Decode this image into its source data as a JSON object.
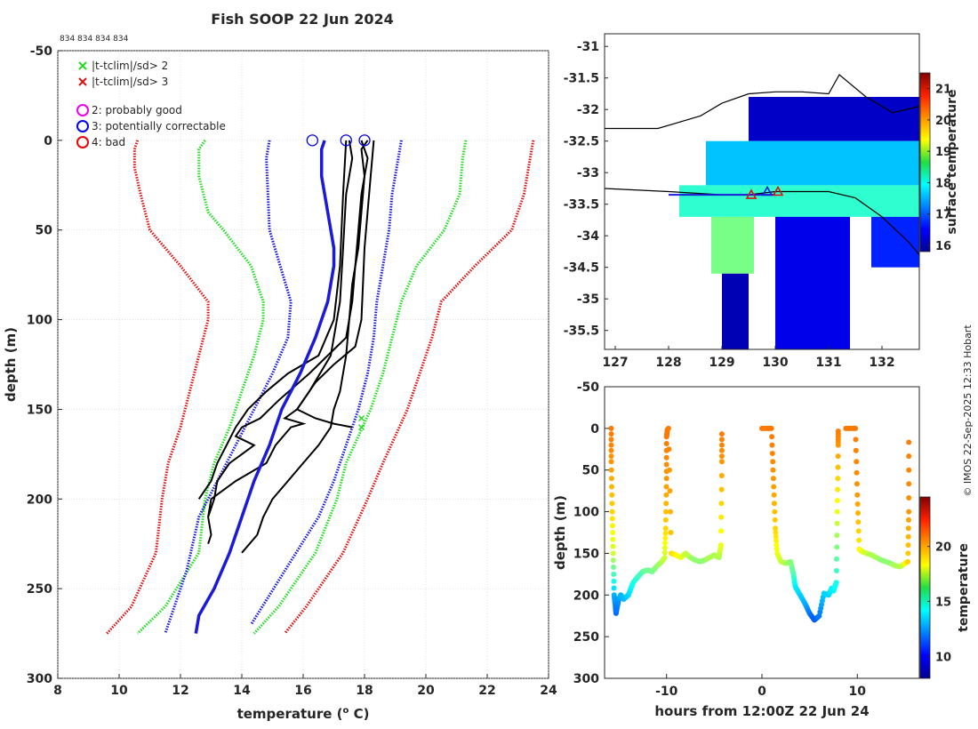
{
  "title": "Fish SOOP 22 Jun 2024",
  "header_ids": "834 834 834 834",
  "credit": "© IMOS 22-Sep-2025 12:33 Hobart",
  "colors": {
    "axis": "#262626",
    "grid": "#d0d0d0",
    "qc2": "#ee00ee",
    "qc3": "#0000ee",
    "qc4": "#ee0000",
    "clim2": "#22dd22",
    "clim3": "#dd1111",
    "profile": "#000000",
    "mean": "#1a1adc",
    "coast": "#000000"
  },
  "chart_data": [
    {
      "type": "line",
      "id": "profiles",
      "title": "Fish SOOP 22 Jun 2024",
      "xlabel": "temperature (",
      "xlabel_sup": "o",
      "xlabel_tail": " C)",
      "ylabel": "depth (m)",
      "xlim": [
        8,
        24
      ],
      "ylim": [
        -50,
        300
      ],
      "y_reversed": true,
      "xticks": [
        8,
        10,
        12,
        14,
        16,
        18,
        20,
        22,
        24
      ],
      "yticks": [
        -50,
        0,
        50,
        100,
        150,
        200,
        250,
        300
      ],
      "grid": true,
      "legend": {
        "position": "top-left",
        "entries": [
          {
            "marker": "x",
            "color": "#22dd22",
            "label": "|t-tclim|/sd> 2"
          },
          {
            "marker": "x",
            "color": "#dd1111",
            "label": "|t-tclim|/sd> 3"
          },
          {
            "marker": "o",
            "color": "#ee00ee",
            "label": "2: probably good"
          },
          {
            "marker": "o",
            "color": "#0000ee",
            "label": "3: potentially correctable"
          },
          {
            "marker": "o",
            "color": "#ee0000",
            "label": "4: bad"
          }
        ]
      },
      "clim_lines": [
        {
          "name": "clim -3sd (left)",
          "color": "#dd1111",
          "depth": [
            0,
            5,
            15,
            30,
            50,
            70,
            90,
            100,
            120,
            140,
            160,
            180,
            200,
            230,
            260,
            275
          ],
          "temp": [
            10.6,
            10.5,
            10.5,
            10.7,
            11.0,
            12.0,
            12.9,
            12.9,
            12.6,
            12.3,
            12.0,
            11.6,
            11.4,
            11.2,
            10.4,
            9.6
          ]
        },
        {
          "name": "clim -2sd (left)",
          "color": "#22dd22",
          "depth": [
            0,
            5,
            20,
            40,
            50,
            70,
            90,
            100,
            120,
            140,
            160,
            180,
            200,
            230,
            260,
            275
          ],
          "temp": [
            12.8,
            12.6,
            12.6,
            12.9,
            13.4,
            14.3,
            14.7,
            14.7,
            14.4,
            14.0,
            13.6,
            13.1,
            12.8,
            12.6,
            11.5,
            10.6
          ]
        },
        {
          "name": "clim +2sd (right)",
          "color": "#22dd22",
          "depth": [
            0,
            10,
            30,
            50,
            70,
            90,
            110,
            130,
            150,
            165,
            180,
            200,
            230,
            260,
            275
          ],
          "temp": [
            21.3,
            21.2,
            21.1,
            20.6,
            19.7,
            19.2,
            18.9,
            18.6,
            18.2,
            17.8,
            17.4,
            17.1,
            16.4,
            15.2,
            14.4
          ]
        },
        {
          "name": "clim +3sd (right)",
          "color": "#dd1111",
          "depth": [
            0,
            10,
            30,
            50,
            70,
            90,
            110,
            130,
            150,
            165,
            180,
            200,
            230,
            260,
            275
          ],
          "temp": [
            23.5,
            23.4,
            23.2,
            22.8,
            21.6,
            20.5,
            20.2,
            19.8,
            19.4,
            19.0,
            18.6,
            18.1,
            17.3,
            16.1,
            15.4
          ]
        }
      ],
      "std_lines": [
        {
          "name": "std -1",
          "color": "#1a1adc",
          "depth": [
            0,
            10,
            50,
            90,
            110,
            130,
            150,
            180,
            210,
            240,
            275
          ],
          "temp": [
            14.9,
            14.8,
            14.9,
            15.6,
            15.5,
            15.0,
            14.4,
            13.5,
            12.6,
            12.2,
            11.5
          ]
        },
        {
          "name": "std +1",
          "color": "#1a1adc",
          "depth": [
            0,
            10,
            30,
            50,
            70,
            90,
            110,
            130,
            150,
            170,
            190,
            210,
            240,
            270
          ],
          "temp": [
            19.2,
            19.1,
            18.9,
            18.8,
            18.6,
            18.4,
            18.3,
            18.1,
            17.8,
            17.4,
            17.0,
            16.5,
            15.4,
            14.3
          ]
        }
      ],
      "profiles": [
        {
          "depth": [
            0,
            5,
            20,
            40,
            60,
            80,
            100,
            120,
            140,
            150,
            160,
            170,
            180,
            190,
            200,
            210,
            220,
            230
          ],
          "temp": [
            18.1,
            17.9,
            18.0,
            17.9,
            17.8,
            17.6,
            17.5,
            17.4,
            17.2,
            17.0,
            16.9,
            16.5,
            16.0,
            15.5,
            15.0,
            14.7,
            14.5,
            14.0
          ]
        },
        {
          "depth": [
            0,
            10,
            30,
            50,
            70,
            90,
            110,
            130,
            145,
            155,
            160,
            165,
            170,
            175,
            180,
            190,
            200,
            210,
            220,
            225
          ],
          "temp": [
            17.9,
            18.1,
            17.9,
            17.8,
            17.7,
            17.6,
            17.4,
            16.2,
            15.2,
            14.6,
            14.0,
            13.8,
            14.4,
            14.0,
            13.6,
            13.2,
            13.1,
            12.9,
            13.0,
            12.9
          ]
        },
        {
          "depth": [
            0,
            10,
            30,
            60,
            90,
            120,
            140,
            150,
            155,
            158,
            160,
            170,
            180,
            185,
            190,
            195,
            200,
            210
          ],
          "temp": [
            17.5,
            17.6,
            17.4,
            17.3,
            17.2,
            16.9,
            16.2,
            15.8,
            15.4,
            16.0,
            15.6,
            15.1,
            14.8,
            14.3,
            13.8,
            13.4,
            13.0,
            12.9
          ]
        },
        {
          "depth": [
            0,
            30,
            70,
            100,
            120,
            130,
            140,
            150,
            160,
            170,
            180,
            190,
            195,
            200
          ],
          "temp": [
            17.4,
            17.3,
            17.2,
            17.0,
            16.5,
            15.5,
            14.8,
            14.2,
            13.8,
            13.5,
            13.2,
            13.0,
            12.8,
            12.6
          ]
        },
        {
          "depth": [
            0,
            20,
            60,
            100,
            115,
            125,
            135,
            145,
            150,
            155,
            158,
            160
          ],
          "temp": [
            18.3,
            18.2,
            18.0,
            17.9,
            17.7,
            17.0,
            16.4,
            16.0,
            15.8,
            16.4,
            17.0,
            17.6
          ]
        }
      ],
      "mean_profile": {
        "color": "#1a1adc",
        "depth": [
          0,
          5,
          20,
          40,
          60,
          70,
          90,
          110,
          130,
          150,
          170,
          190,
          210,
          230,
          250,
          265,
          275
        ],
        "temp": [
          16.7,
          16.6,
          16.6,
          16.8,
          17.0,
          17.0,
          16.8,
          16.4,
          15.9,
          15.3,
          14.9,
          14.4,
          14.0,
          13.6,
          13.1,
          12.6,
          12.5
        ]
      },
      "qc_flags": [
        {
          "temp": 16.3,
          "depth": 0,
          "flag": "3: potentially correctable"
        },
        {
          "temp": 17.4,
          "depth": 0,
          "flag": "3: potentially correctable"
        },
        {
          "temp": 18.0,
          "depth": 0,
          "flag": "3: potentially correctable"
        }
      ],
      "outlier_marks": [
        {
          "temp": 17.9,
          "depth": 155,
          "flag": "|t-tclim|/sd> 2"
        },
        {
          "temp": 17.9,
          "depth": 160,
          "flag": "|t-tclim|/sd> 2"
        }
      ]
    },
    {
      "type": "heatmap",
      "id": "sst-map",
      "xlim": [
        126.8,
        132.7
      ],
      "ylim": [
        -35.8,
        -30.8
      ],
      "xticks": [
        127,
        128,
        129,
        130,
        131,
        132
      ],
      "yticks": [
        -31,
        -31.5,
        -32,
        -32.5,
        -33,
        -33.5,
        -34,
        -34.5,
        -35,
        -35.5
      ],
      "colorbar": {
        "label": "surface temperature",
        "range": [
          15.8,
          21.5
        ],
        "ticks": [
          16,
          17,
          18,
          19,
          20,
          21
        ]
      },
      "sst_blocks": [
        {
          "lon": [
            129.5,
            132.7
          ],
          "lat": [
            -32.5,
            -31.8
          ],
          "temp": 16.2
        },
        {
          "lon": [
            128.7,
            132.7
          ],
          "lat": [
            -33.2,
            -32.5
          ],
          "temp": 17.6
        },
        {
          "lon": [
            128.2,
            132.7
          ],
          "lat": [
            -33.7,
            -33.2
          ],
          "temp": 18.2
        },
        {
          "lon": [
            128.8,
            129.6
          ],
          "lat": [
            -34.6,
            -33.7
          ],
          "temp": 18.6
        },
        {
          "lon": [
            130.0,
            131.4
          ],
          "lat": [
            -35.8,
            -33.7
          ],
          "temp": 16.4
        },
        {
          "lon": [
            129.0,
            129.5
          ],
          "lat": [
            -35.8,
            -34.6
          ],
          "temp": 16.1
        },
        {
          "lon": [
            131.8,
            132.7
          ],
          "lat": [
            -34.5,
            -33.7
          ],
          "temp": 16.7
        }
      ],
      "coastline": {
        "lon": [
          126.8,
          127.8,
          128.6,
          129.0,
          129.5,
          130.0,
          130.5,
          131.0,
          131.2,
          131.7,
          132.2,
          132.7
        ],
        "lat": [
          -32.3,
          -32.3,
          -32.1,
          -31.9,
          -31.75,
          -31.72,
          -31.72,
          -31.75,
          -31.45,
          -31.8,
          -32.05,
          -31.95
        ]
      },
      "front_line": {
        "lon": [
          126.8,
          128.0,
          129.0,
          129.5,
          130.0,
          130.5,
          131.0,
          131.5,
          132.0,
          132.5,
          132.7
        ],
        "lat": [
          -33.25,
          -33.3,
          -33.35,
          -33.35,
          -33.3,
          -33.3,
          -33.3,
          -33.4,
          -33.7,
          -34.1,
          -34.3
        ]
      },
      "ship_track": {
        "lon": [
          128.0,
          130.0
        ],
        "lat": [
          -33.35,
          -33.35
        ]
      },
      "stations": [
        {
          "lon": 129.55,
          "lat": -33.35,
          "color": "#dd1111"
        },
        {
          "lon": 129.85,
          "lat": -33.3,
          "color": "#1a1adc"
        },
        {
          "lon": 130.05,
          "lat": -33.3,
          "color": "#dd1111"
        }
      ]
    },
    {
      "type": "scatter",
      "id": "time-depth",
      "xlabel": "hours from 12:00Z 22 Jun 24",
      "ylabel": "depth (m)",
      "xlim": [
        -16.5,
        16.5
      ],
      "ylim": [
        -50,
        300
      ],
      "y_reversed": true,
      "xticks": [
        -10,
        0,
        10
      ],
      "yticks": [
        -50,
        0,
        50,
        100,
        150,
        200,
        250,
        300
      ],
      "colorbar": {
        "label": "temperature",
        "range": [
          8,
          24.5
        ],
        "ticks": [
          10,
          15,
          20
        ]
      },
      "casts": [
        {
          "time": [
            -15.8,
            -15.8,
            -15.7,
            -15.6,
            -15.5,
            -15.4,
            -15.3,
            -15.2,
            -15.0,
            -14.8,
            -14.5,
            -14.0,
            -13.5,
            -13.0,
            -12.5,
            -12.0,
            -11.5,
            -11.0,
            -10.5,
            -10.2,
            -10.1,
            -10.0,
            -10.0,
            -9.9
          ],
          "depth": [
            0,
            40,
            100,
            150,
            200,
            210,
            222,
            215,
            205,
            200,
            205,
            200,
            185,
            178,
            172,
            170,
            172,
            165,
            160,
            155,
            120,
            60,
            10,
            0
          ],
          "temp": [
            20.5,
            20,
            19,
            17.5,
            13,
            12.5,
            11.8,
            12,
            12.5,
            13,
            13,
            13.5,
            14.5,
            15,
            15.5,
            16,
            16,
            16.5,
            17,
            17.5,
            19,
            20,
            20.5,
            20.5
          ]
        },
        {
          "time": [
            -9.8,
            -9.5,
            -9.0,
            -8.5,
            -8.0,
            -7.5,
            -7.0,
            -6.5,
            -6.0,
            -5.5,
            -5.0,
            -4.5,
            -4.3,
            -4.2,
            -4.2
          ],
          "depth": [
            0,
            150,
            152,
            155,
            150,
            155,
            158,
            160,
            158,
            155,
            152,
            155,
            140,
            40,
            0
          ],
          "temp": [
            20.5,
            19,
            18.5,
            18,
            17.5,
            17,
            16.5,
            16.5,
            16.5,
            17,
            17,
            17,
            18,
            20,
            20.5
          ]
        },
        {
          "time": [
            0,
            1.0,
            1.2,
            1.4,
            1.6,
            2.0,
            2.5,
            3.0,
            3.3,
            3.5,
            4.0,
            4.5,
            5.0,
            5.5,
            6.0,
            6.5,
            7.0,
            7.3,
            7.5,
            7.8,
            7.9,
            8.0,
            8.0
          ],
          "depth": [
            0,
            0,
            60,
            120,
            150,
            160,
            162,
            160,
            175,
            190,
            200,
            210,
            222,
            230,
            225,
            198,
            200,
            192,
            195,
            185,
            100,
            20,
            0
          ],
          "temp": [
            20.5,
            20.5,
            20,
            19,
            18,
            17.5,
            17,
            16.5,
            15.5,
            14,
            13.5,
            13,
            12,
            11.5,
            12,
            13.5,
            13.5,
            14,
            14,
            14.5,
            18,
            20,
            20.5
          ]
        },
        {
          "time": [
            8.8,
            9.8,
            10.0,
            10.2,
            10.5,
            11.0,
            11.5,
            12.0,
            12.5,
            13.0,
            13.5,
            14.0,
            14.5,
            15.0,
            15.3,
            15.4,
            15.4
          ],
          "depth": [
            0,
            0,
            80,
            145,
            148,
            150,
            152,
            155,
            158,
            160,
            162,
            165,
            166,
            162,
            160,
            100,
            0
          ],
          "temp": [
            20.5,
            20.5,
            20,
            18.5,
            18,
            17.5,
            17,
            17,
            16.5,
            16.5,
            16.5,
            17,
            17,
            18,
            19,
            20,
            20.5
          ]
        }
      ]
    }
  ]
}
